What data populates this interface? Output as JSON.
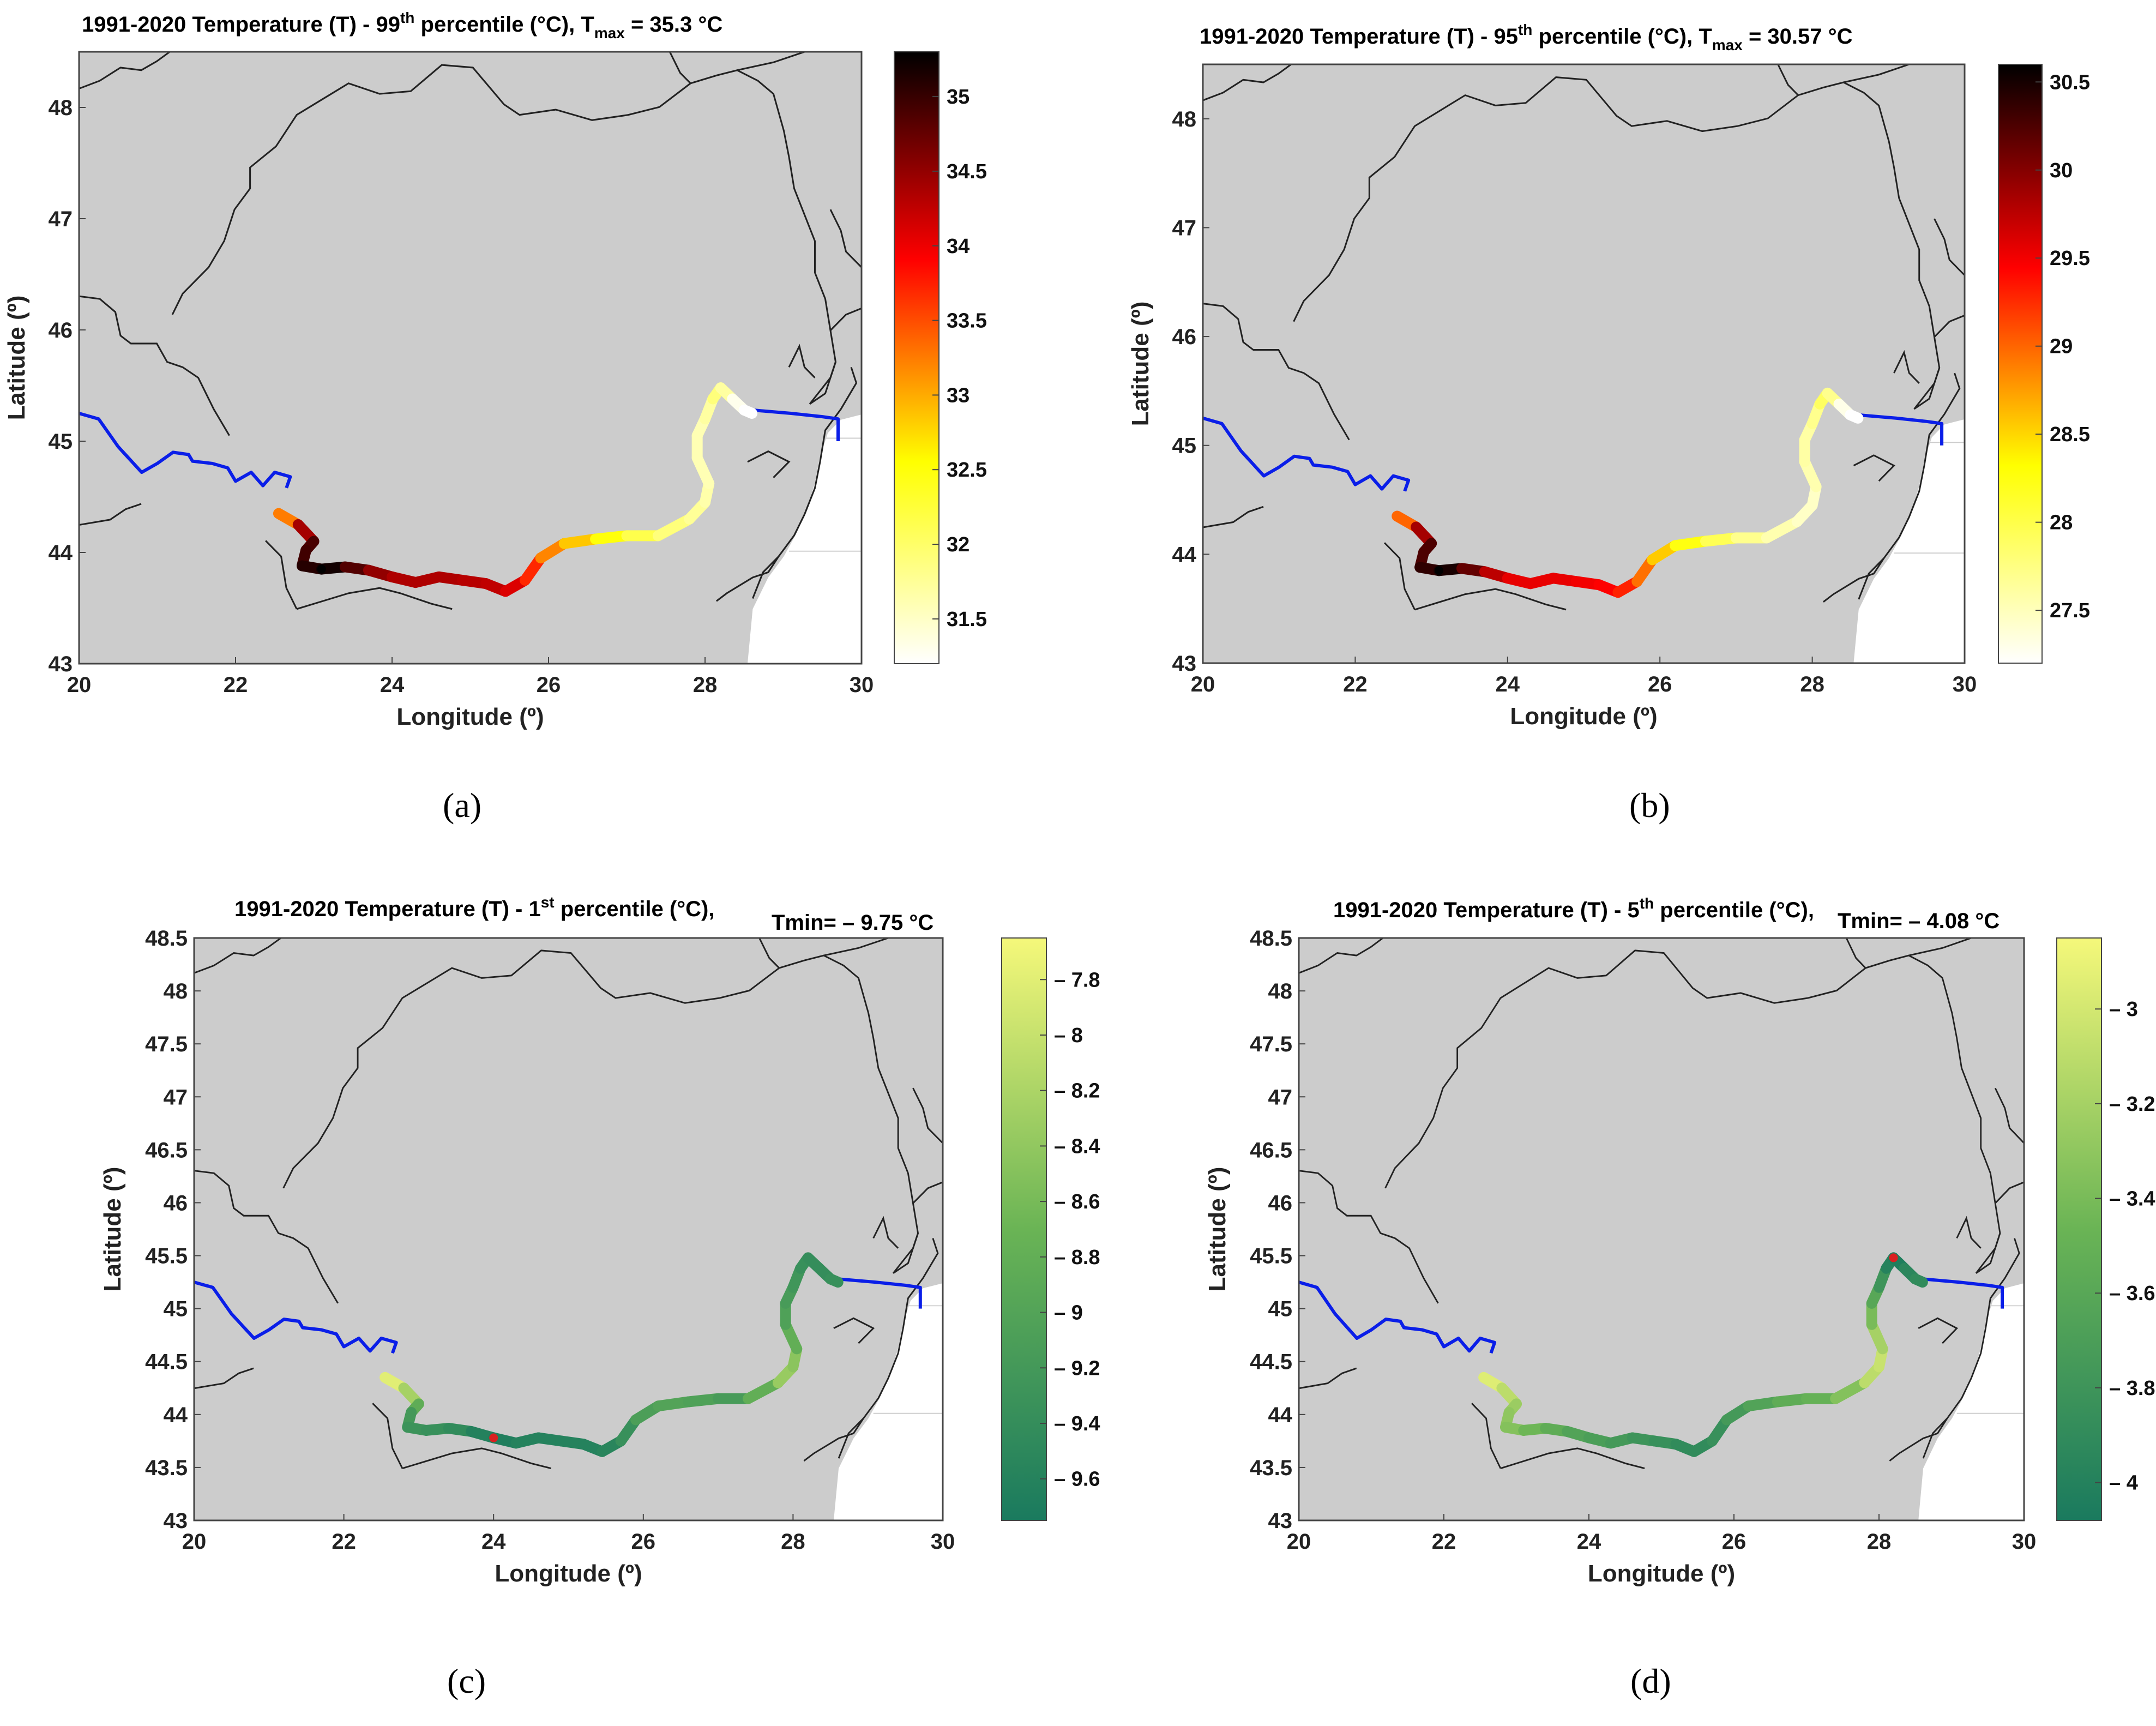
{
  "chart_data": [
    {
      "type": "map-line",
      "panel_label": "(a)",
      "title": {
        "pre": "1991-2020 Temperature (T) - 99",
        "sup": "th",
        "mid": " percentile (°C), T",
        "sub": "max",
        "post": " = 35.3 °C"
      },
      "xlabel": "Longitude (º)",
      "ylabel": "Latitude (º)",
      "xlim": [
        20,
        30
      ],
      "ylim": [
        43,
        48.5
      ],
      "xticks": [
        "20",
        "22",
        "24",
        "26",
        "28",
        "30"
      ],
      "yticks": [
        "43",
        "44",
        "45",
        "46",
        "47",
        "48"
      ],
      "colormap": "hot",
      "colorbar": {
        "min": 31.2,
        "max": 35.3,
        "ticks": [
          "31.5",
          "32",
          "32.5",
          "33",
          "33.5",
          "34",
          "34.5",
          "35"
        ]
      },
      "extreme_value": 35.3
    },
    {
      "type": "map-line",
      "panel_label": "(b)",
      "title": {
        "pre": "1991-2020 Temperature (T) - 95",
        "sup": "th",
        "mid": " percentile (°C), T",
        "sub": "max",
        "post": " = 30.57 °C"
      },
      "xlabel": "Longitude (º)",
      "ylabel": "Latitude (º)",
      "xlim": [
        20,
        30
      ],
      "ylim": [
        43,
        48.5
      ],
      "xticks": [
        "20",
        "22",
        "24",
        "26",
        "28",
        "30"
      ],
      "yticks": [
        "43",
        "44",
        "45",
        "46",
        "47",
        "48"
      ],
      "colormap": "hot",
      "colorbar": {
        "min": 27.2,
        "max": 30.6,
        "ticks": [
          "27.5",
          "28",
          "28.5",
          "29",
          "29.5",
          "30",
          "30.5"
        ]
      },
      "extreme_value": 30.57
    },
    {
      "type": "map-line",
      "panel_label": "(c)",
      "title": {
        "pre": "1991-2020 Temperature (T) - 1",
        "sup": "st",
        "mid": " percentile (°C),",
        "sub": "",
        "post": ""
      },
      "subtitle": "Tmin= – 9.75 °C",
      "xlabel": "Longitude (º)",
      "ylabel": "Latitude (º)",
      "xlim": [
        20,
        30
      ],
      "ylim": [
        43,
        48.5
      ],
      "xticks": [
        "20",
        "22",
        "24",
        "26",
        "28",
        "30"
      ],
      "yticks": [
        "43",
        "43.5",
        "44",
        "44.5",
        "45",
        "45.5",
        "46",
        "46.5",
        "47",
        "47.5",
        "48",
        "48.5"
      ],
      "colormap": "summer",
      "colorbar": {
        "min": -9.75,
        "max": -7.65,
        "ticks": [
          "– 7.8",
          "– 8",
          "– 8.2",
          "– 8.4",
          "– 8.6",
          "– 8.8",
          "– 9",
          "– 9.2",
          "– 9.4",
          "– 9.6"
        ]
      },
      "extreme_value": -9.75
    },
    {
      "type": "map-line",
      "panel_label": "(d)",
      "title": {
        "pre": "1991-2020 Temperature (T) - 5",
        "sup": "th",
        "mid": " percentile (°C),",
        "sub": "",
        "post": ""
      },
      "subtitle": "Tmin= – 4.08 °C",
      "xlabel": "Longitude (º)",
      "ylabel": "Latitude (º)",
      "xlim": [
        20,
        30
      ],
      "ylim": [
        43,
        48.5
      ],
      "xticks": [
        "20",
        "22",
        "24",
        "26",
        "28",
        "30"
      ],
      "yticks": [
        "43",
        "43.5",
        "44",
        "44.5",
        "45",
        "45.5",
        "46",
        "46.5",
        "47",
        "47.5",
        "48",
        "48.5"
      ],
      "colormap": "summer",
      "colorbar": {
        "min": -4.08,
        "max": -2.85,
        "ticks": [
          "– 3",
          "– 3.2",
          "– 3.4",
          "– 3.6",
          "– 3.8",
          "– 4"
        ]
      },
      "extreme_value": -4.08
    }
  ],
  "river": {
    "upstream_lonlat": [
      [
        20.0,
        45.25
      ],
      [
        20.25,
        45.2
      ],
      [
        20.5,
        44.95
      ],
      [
        20.8,
        44.72
      ],
      [
        21.0,
        44.8
      ],
      [
        21.2,
        44.9
      ],
      [
        21.4,
        44.88
      ],
      [
        21.45,
        44.82
      ],
      [
        21.7,
        44.8
      ],
      [
        21.9,
        44.76
      ],
      [
        22.0,
        44.64
      ],
      [
        22.2,
        44.72
      ],
      [
        22.35,
        44.6
      ],
      [
        22.5,
        44.72
      ],
      [
        22.7,
        44.68
      ],
      [
        22.65,
        44.58
      ]
    ],
    "downstream_lonlat": [
      [
        28.6,
        45.28
      ],
      [
        29.1,
        45.25
      ],
      [
        29.5,
        45.22
      ],
      [
        29.7,
        45.2
      ],
      [
        29.7,
        45.0
      ]
    ],
    "colored_lonlat": [
      [
        22.55,
        44.35
      ],
      [
        22.8,
        44.25
      ],
      [
        23.0,
        44.1
      ],
      [
        22.9,
        44.02
      ],
      [
        22.85,
        43.88
      ],
      [
        23.1,
        43.85
      ],
      [
        23.4,
        43.87
      ],
      [
        23.7,
        43.84
      ],
      [
        24.0,
        43.78
      ],
      [
        24.3,
        43.73
      ],
      [
        24.6,
        43.78
      ],
      [
        24.9,
        43.75
      ],
      [
        25.2,
        43.72
      ],
      [
        25.45,
        43.65
      ],
      [
        25.7,
        43.75
      ],
      [
        25.9,
        43.95
      ],
      [
        26.2,
        44.08
      ],
      [
        26.6,
        44.12
      ],
      [
        27.0,
        44.15
      ],
      [
        27.4,
        44.15
      ],
      [
        27.8,
        44.3
      ],
      [
        28.0,
        44.45
      ],
      [
        28.05,
        44.62
      ],
      [
        27.9,
        44.85
      ],
      [
        27.9,
        45.05
      ],
      [
        28.0,
        45.2
      ],
      [
        28.1,
        45.38
      ],
      [
        28.2,
        45.48
      ],
      [
        28.35,
        45.38
      ],
      [
        28.5,
        45.28
      ],
      [
        28.6,
        45.25
      ]
    ],
    "values": [
      [
        32.5,
        34.0,
        34.8,
        35.0,
        34.9,
        35.3,
        35.1,
        34.6,
        34.4,
        34.3,
        34.4,
        34.3,
        34.3,
        34.2,
        34.0,
        33.4,
        33.0,
        32.7,
        32.3,
        32.0,
        31.8,
        31.7,
        31.6,
        31.6,
        31.6,
        31.6,
        31.8,
        32.0,
        31.4,
        31.2,
        31.2
      ],
      [
        28.5,
        29.5,
        30.2,
        30.3,
        30.2,
        30.57,
        30.4,
        29.9,
        29.6,
        29.5,
        29.6,
        29.5,
        29.5,
        29.4,
        29.2,
        28.7,
        28.4,
        28.1,
        27.8,
        27.6,
        27.5,
        27.4,
        27.5,
        27.6,
        27.6,
        27.6,
        27.8,
        28.0,
        27.4,
        27.2,
        27.2
      ],
      [
        -7.7,
        -7.9,
        -8.6,
        -9.1,
        -9.3,
        -9.3,
        -9.4,
        -9.5,
        -9.75,
        -9.6,
        -9.6,
        -9.6,
        -9.6,
        -9.6,
        -9.5,
        -9.2,
        -9.0,
        -9.0,
        -9.1,
        -9.2,
        -8.4,
        -8.3,
        -8.6,
        -9.0,
        -9.1,
        -9.2,
        -9.3,
        -9.4,
        -9.4,
        -9.4,
        -9.3
      ],
      [
        -2.9,
        -3.0,
        -3.2,
        -3.3,
        -3.3,
        -3.4,
        -3.5,
        -3.6,
        -3.7,
        -3.7,
        -3.8,
        -3.8,
        -3.9,
        -3.9,
        -3.9,
        -3.8,
        -3.7,
        -3.6,
        -3.5,
        -3.5,
        -3.2,
        -3.0,
        -3.1,
        -3.3,
        -3.5,
        -3.7,
        -3.9,
        -4.08,
        -4.0,
        -3.9,
        -3.9
      ]
    ]
  }
}
